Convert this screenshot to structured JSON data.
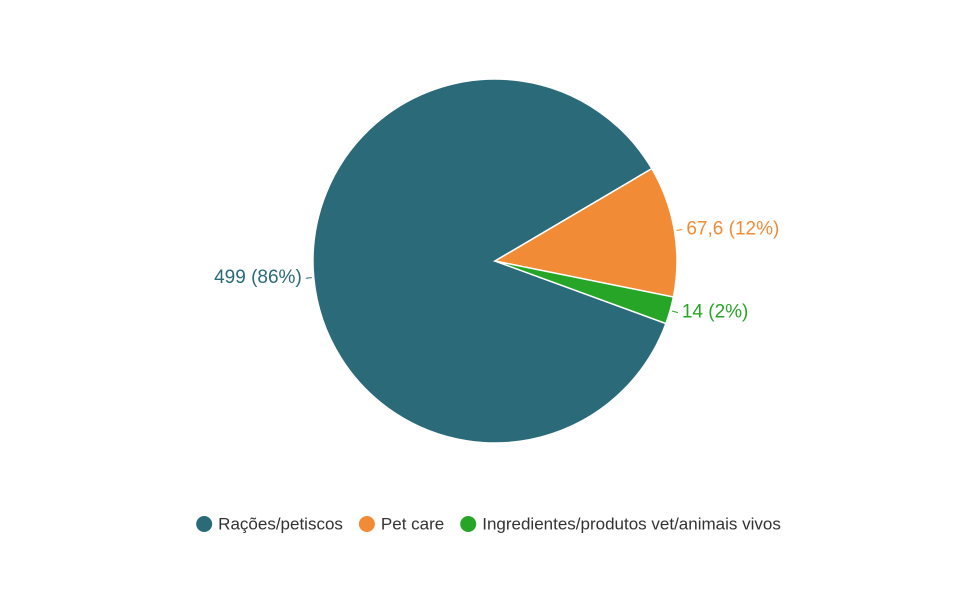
{
  "chart_data": {
    "type": "pie",
    "categories": [
      "Rações/petiscos",
      "Pet care",
      "Ingredientes/produtos vet/animais vivos"
    ],
    "values": [
      499,
      67.6,
      14
    ],
    "value_labels": [
      "499 (86%)",
      "67,6 (12%)",
      "14 (2%)"
    ],
    "colors": [
      "#2a6a79",
      "#f28b36",
      "#27a526"
    ],
    "legend": "bottom"
  }
}
